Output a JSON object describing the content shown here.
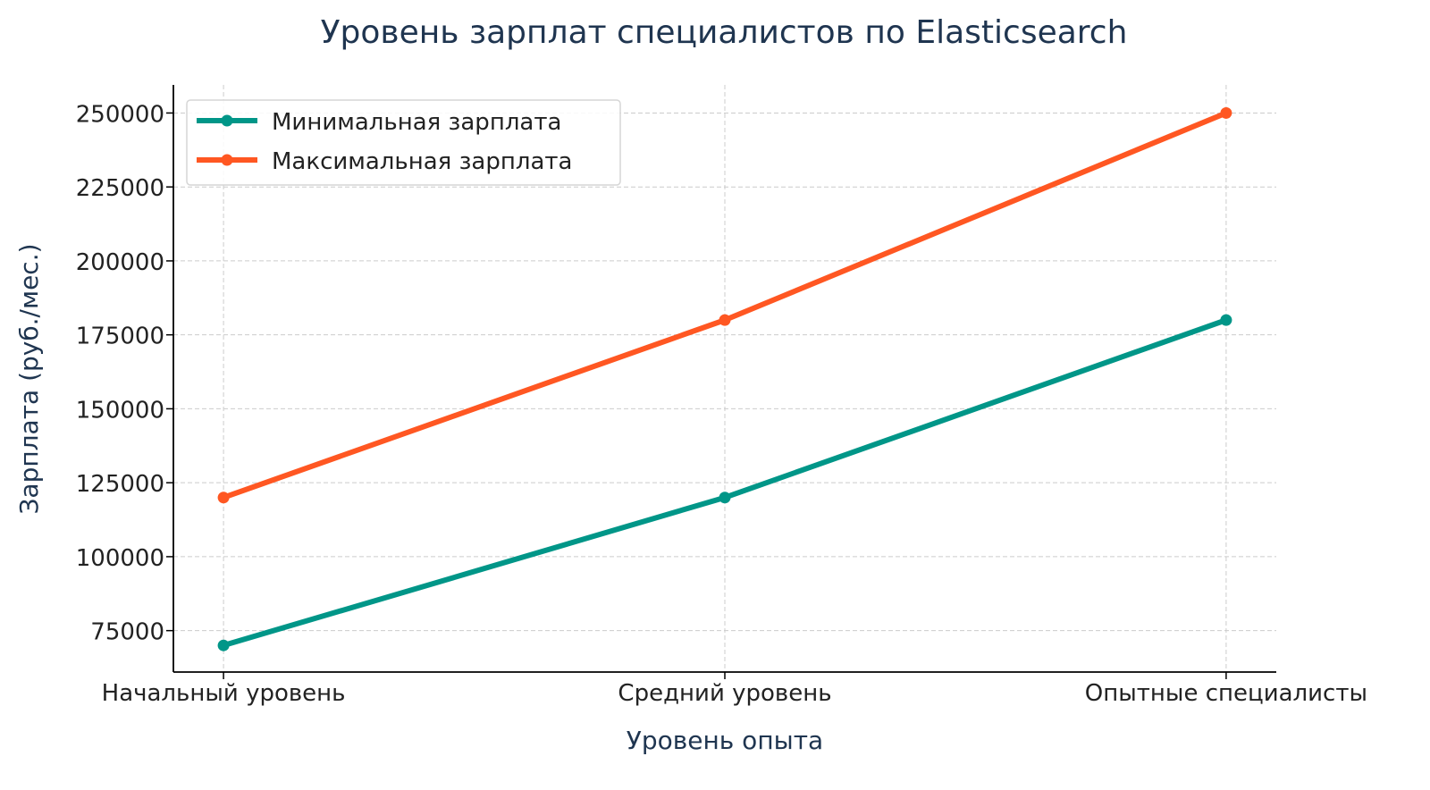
{
  "chart_data": {
    "type": "line",
    "title": "Уровень зарплат специалистов по Elasticsearch",
    "xlabel": "Уровень опыта",
    "ylabel": "Зарплата (руб./мес.)",
    "categories": [
      "Начальный уровень",
      "Средний уровень",
      "Опытные специалисты"
    ],
    "series": [
      {
        "name": "Минимальная зарплата",
        "values": [
          70000,
          120000,
          180000
        ],
        "color": "#009688"
      },
      {
        "name": "Максимальная зарплата",
        "values": [
          120000,
          180000,
          250000
        ],
        "color": "#FF5722"
      }
    ],
    "yticks": [
      75000,
      100000,
      125000,
      150000,
      175000,
      200000,
      225000,
      250000
    ],
    "ylim": [
      61000,
      259500
    ],
    "xlim": [
      -0.1,
      2.1
    ],
    "grid": true,
    "legend_position": "top-left"
  }
}
